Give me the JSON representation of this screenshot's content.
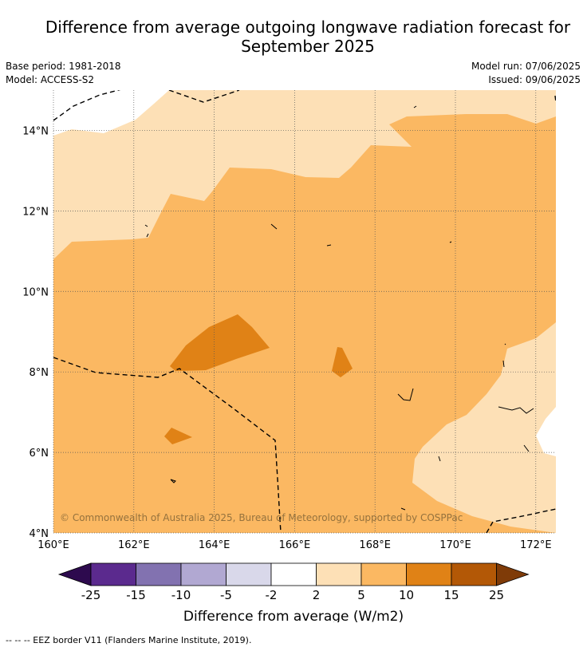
{
  "title_line1": "Difference from average outgoing longwave radiation forecast for",
  "title_line2": "September 2025",
  "base_period": "Base period: 1981-2018",
  "model": "Model: ACCESS-S2",
  "model_run": "Model run: 07/06/2025",
  "issued": "Issued: 09/06/2025",
  "map": {
    "lat_labels": [
      "14°N",
      "12°N",
      "10°N",
      "8°N",
      "6°N",
      "4°N"
    ],
    "lat_values": [
      14,
      12,
      10,
      8,
      6,
      4
    ],
    "lon_labels": [
      "160°E",
      "162°E",
      "164°E",
      "166°E",
      "168°E",
      "170°E",
      "172°E"
    ],
    "lon_values": [
      160,
      162,
      164,
      166,
      168,
      170,
      172
    ],
    "lon_range": [
      160,
      172.5
    ],
    "lat_range": [
      4,
      15
    ],
    "copyright": "© Commonwealth of Australia 2025, Bureau of Meteorology, supported by COSPPac"
  },
  "colorbar": {
    "tick_labels": [
      "-25",
      "-15",
      "-10",
      "-5",
      "-2",
      "2",
      "5",
      "10",
      "15",
      "25"
    ],
    "colors": [
      "#2d0a4e",
      "#5b2a8e",
      "#8272b0",
      "#b1a8d2",
      "#d9d8ea",
      "#ffffff",
      "#fde0b6",
      "#fbb862",
      "#e08216",
      "#b35806",
      "#7f3b08"
    ],
    "label": "Difference from average (W/m2)"
  },
  "footer": "--  --  -- EEZ border V11 (Flanders Marine Institute, 2019)."
}
